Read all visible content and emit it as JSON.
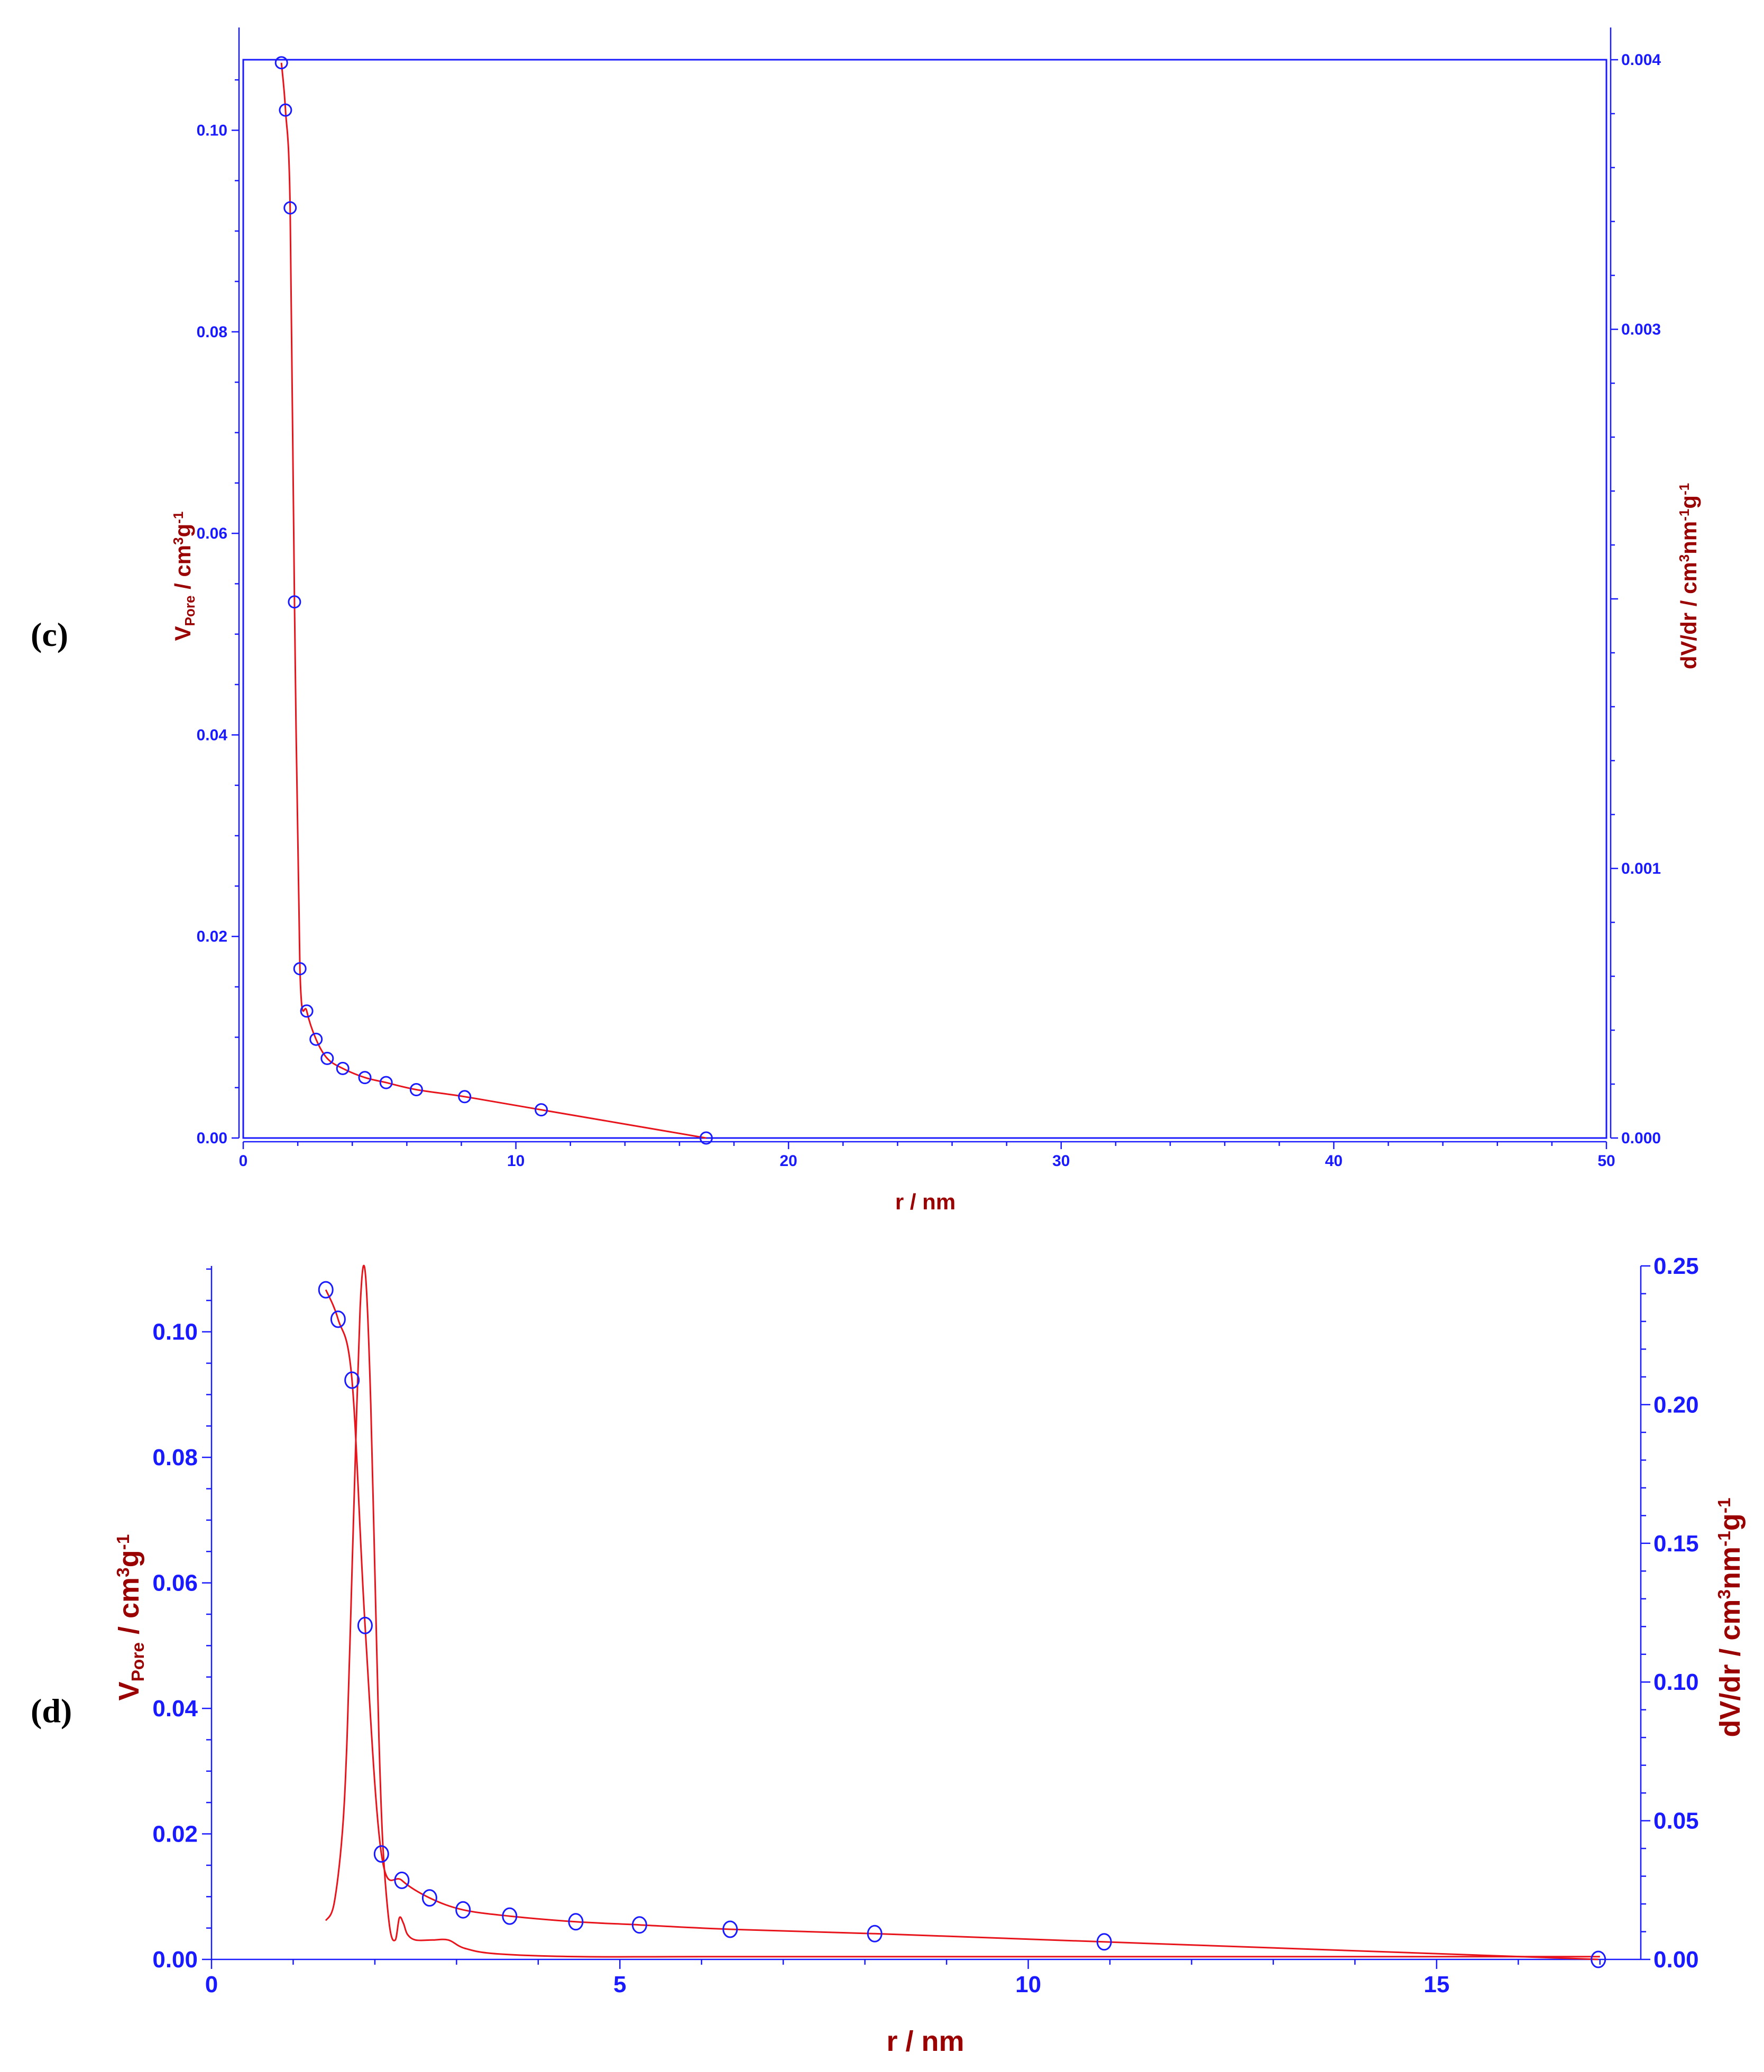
{
  "panels": [
    {
      "label": "(c)",
      "chart_data": {
        "type": "line",
        "xlabel": "r / nm",
        "ylabel_left": "V_Pore / cm^3g^-1",
        "ylabel_right": "dV/dr / cm^3nm^-1g^-1",
        "xlim": [
          0,
          50
        ],
        "ylim_left": [
          0,
          0.107
        ],
        "ylim_right": [
          0,
          0.004
        ],
        "x_ticks": [
          "0",
          "10",
          "20",
          "30",
          "40",
          "50"
        ],
        "y_ticks_left": [
          "0.00",
          "0.02",
          "0.04",
          "0.06",
          "0.08",
          "0.10"
        ],
        "y_ticks_right": [
          "0.000",
          "0.001",
          "0.003",
          "0.004"
        ],
        "frame_box": true,
        "series": [
          {
            "type": "cumulative pore volume",
            "marker": "open-circle",
            "x": [
              1.4,
              1.55,
              1.72,
              1.88,
              2.08,
              2.33,
              2.67,
              3.08,
              3.65,
              4.46,
              5.24,
              6.35,
              8.12,
              10.93,
              16.98
            ],
            "y": [
              0.1067,
              0.102,
              0.0923,
              0.0532,
              0.0168,
              0.0126,
              0.0098,
              0.0079,
              0.0069,
              0.006,
              0.0055,
              0.0048,
              0.0041,
              0.0028,
              0.0
            ]
          }
        ]
      }
    },
    {
      "label": "(d)",
      "chart_data": {
        "type": "line",
        "xlabel": "r / nm",
        "ylabel_left": "V_Pore / cm^3g^-1",
        "ylabel_right": "dV/dr / cm^3nm^-1g^-1",
        "xlim": [
          0,
          17.5
        ],
        "ylim_left": [
          0,
          0.1105
        ],
        "ylim_right": [
          0,
          0.25
        ],
        "x_ticks": [
          "0",
          "5",
          "10",
          "15"
        ],
        "y_ticks_left": [
          "0.00",
          "0.02",
          "0.04",
          "0.06",
          "0.08",
          "0.10"
        ],
        "y_ticks_right": [
          "0.00",
          "0.05",
          "0.10",
          "0.15",
          "0.20",
          "0.25"
        ],
        "frame_box": false,
        "series": [
          {
            "type": "cumulative pore volume",
            "marker": "open-circle",
            "x": [
              1.4,
              1.55,
              1.72,
              1.88,
              2.08,
              2.33,
              2.67,
              3.08,
              3.65,
              4.46,
              5.24,
              6.35,
              8.12,
              10.93,
              16.98
            ],
            "y": [
              0.1067,
              0.102,
              0.0923,
              0.0532,
              0.0168,
              0.0126,
              0.0098,
              0.0079,
              0.0069,
              0.006,
              0.0055,
              0.0048,
              0.0041,
              0.0028,
              0.0
            ]
          },
          {
            "type": "pore size distribution",
            "axis": "right",
            "marker": "none",
            "x": [
              1.4,
              1.5,
              1.6,
              1.66,
              1.72,
              1.78,
              1.82,
              1.86,
              1.9,
              1.95,
              2.0,
              2.05,
              2.1,
              2.18,
              2.25,
              2.3,
              2.35,
              2.4,
              2.5,
              2.7,
              2.9,
              3.1,
              3.5,
              4.5,
              6.0,
              10.0,
              17.0
            ],
            "y": [
              0.014,
              0.02,
              0.045,
              0.08,
              0.14,
              0.2,
              0.235,
              0.25,
              0.24,
              0.2,
              0.14,
              0.08,
              0.04,
              0.012,
              0.007,
              0.015,
              0.013,
              0.009,
              0.007,
              0.007,
              0.007,
              0.004,
              0.002,
              0.001,
              0.001,
              0.001,
              0.001
            ]
          }
        ]
      }
    }
  ]
}
